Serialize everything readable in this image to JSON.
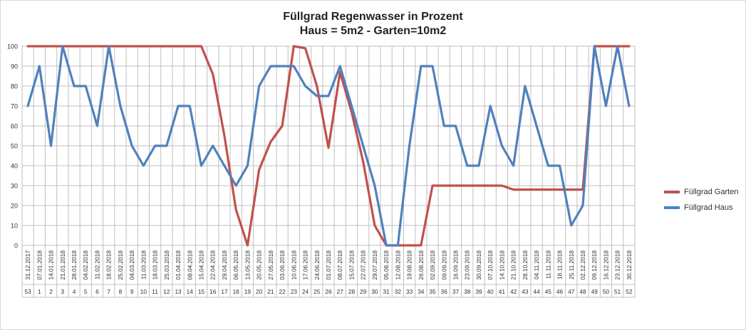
{
  "chart_data": {
    "type": "line",
    "title": "Füllgrad Regenwasser in Prozent",
    "subtitle": "Haus = 5m2 - Garten=10m2",
    "xlabel": "",
    "ylabel": "",
    "ylim": [
      0,
      100
    ],
    "yticks": [
      0,
      10,
      20,
      30,
      40,
      50,
      60,
      70,
      80,
      90,
      100
    ],
    "grid": true,
    "legend_position": "right",
    "dates": [
      "31.12.2017",
      "07.01.2018",
      "14.01.2018",
      "21.01.2018",
      "28.01.2018",
      "04.02.2018",
      "11.02.2018",
      "18.02.2018",
      "25.02.2018",
      "04.03.2018",
      "11.03.2018",
      "18.03.2018",
      "25.03.2018",
      "01.04.2018",
      "08.04.2018",
      "15.04.2018",
      "22.04.2018",
      "29.04.2018",
      "06.05.2018",
      "13.05.2018",
      "20.05.2018",
      "27.05.2018",
      "03.06.2018",
      "10.06.2018",
      "17.06.2018",
      "24.06.2018",
      "01.07.2018",
      "08.07.2018",
      "15.07.2018",
      "22.07.2018",
      "29.07.2018",
      "05.08.2018",
      "12.08.2018",
      "19.08.2018",
      "26.08.2018",
      "02.09.2018",
      "09.09.2018",
      "16.09.2018",
      "23.09.2018",
      "30.09.2018",
      "07.10.2018",
      "14.10.2018",
      "21.10.2018",
      "28.10.2018",
      "04.11.2018",
      "11.11.2018",
      "18.11.2018",
      "25.11.2018",
      "02.12.2018",
      "09.12.2018",
      "16.12.2018",
      "23.12.2018",
      "30.12.2018"
    ],
    "weeks": [
      "53",
      "1",
      "2",
      "3",
      "4",
      "5",
      "6",
      "7",
      "8",
      "9",
      "10",
      "11",
      "12",
      "13",
      "14",
      "15",
      "16",
      "17",
      "18",
      "19",
      "20",
      "21",
      "22",
      "23",
      "24",
      "25",
      "26",
      "27",
      "28",
      "29",
      "30",
      "31",
      "32",
      "33",
      "34",
      "35",
      "36",
      "37",
      "38",
      "39",
      "40",
      "41",
      "42",
      "43",
      "44",
      "45",
      "46",
      "47",
      "48",
      "49",
      "50",
      "51",
      "52"
    ],
    "series": [
      {
        "name": "Füllgrad Garten",
        "color": "#c0504d",
        "values": [
          100,
          100,
          100,
          100,
          100,
          100,
          100,
          100,
          100,
          100,
          100,
          100,
          100,
          100,
          100,
          100,
          86,
          55,
          18,
          0,
          38,
          52,
          60,
          100,
          99,
          80,
          49,
          87,
          67,
          42,
          10,
          0,
          0,
          0,
          0,
          30,
          30,
          30,
          30,
          30,
          30,
          30,
          28,
          28,
          28,
          28,
          28,
          28,
          28,
          100,
          100,
          100,
          100
        ]
      },
      {
        "name": "Füllgrad Haus",
        "color": "#4f81bd",
        "values": [
          70,
          90,
          50,
          100,
          80,
          80,
          60,
          100,
          70,
          50,
          40,
          50,
          50,
          70,
          70,
          40,
          50,
          40,
          30,
          40,
          80,
          90,
          90,
          90,
          80,
          75,
          75,
          90,
          70,
          50,
          30,
          0,
          0,
          50,
          90,
          90,
          60,
          60,
          40,
          40,
          70,
          50,
          40,
          80,
          60,
          40,
          40,
          10,
          20,
          100,
          70,
          100,
          70
        ]
      }
    ]
  }
}
